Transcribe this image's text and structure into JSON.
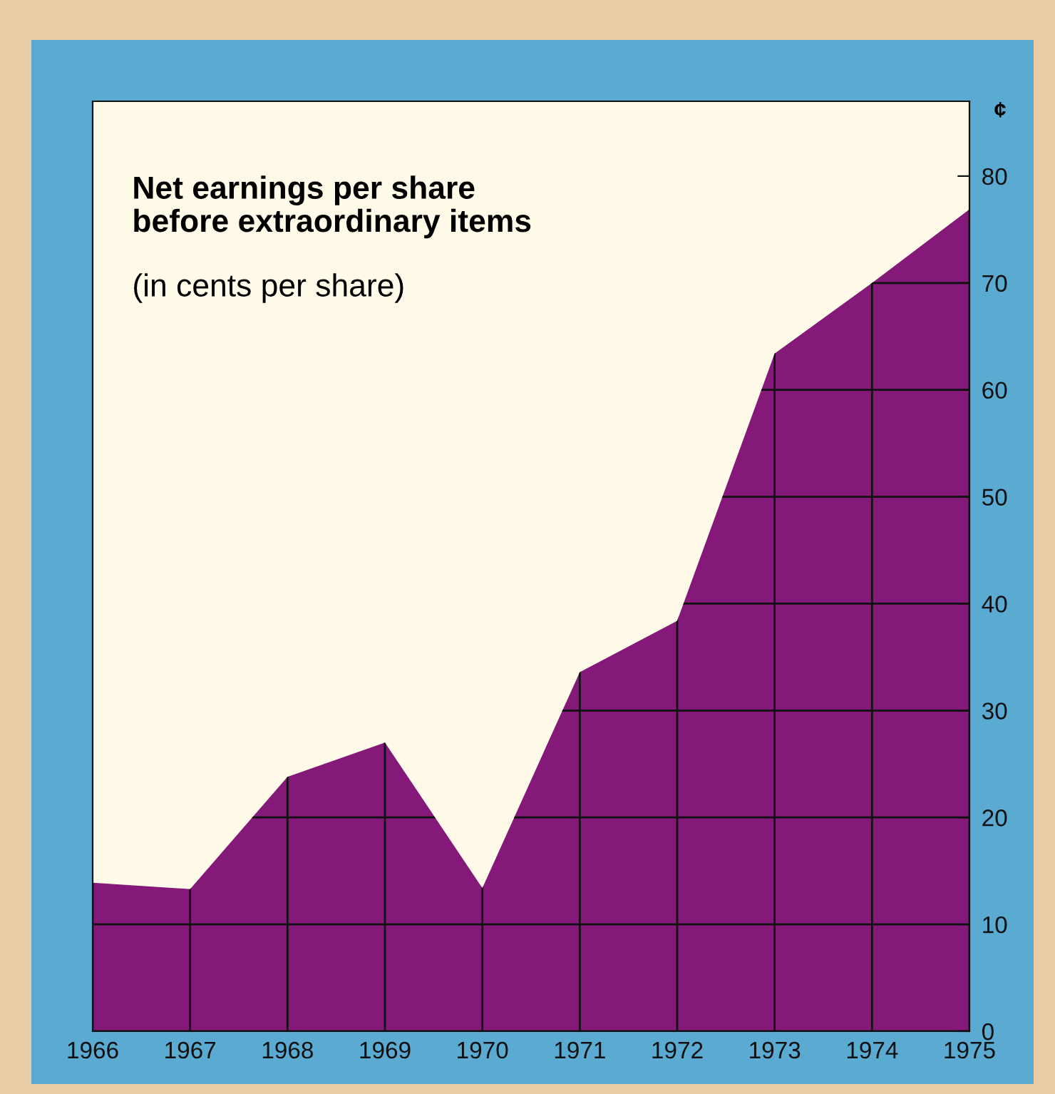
{
  "chart_data": {
    "type": "area",
    "title": "Net earnings per share\nbefore extraordinary items",
    "subtitle": "(in cents per share)",
    "ylabel": "¢",
    "x": [
      1966,
      1967,
      1968,
      1969,
      1970,
      1971,
      1972,
      1973,
      1974,
      1975
    ],
    "series": [
      {
        "color": "#84197a",
        "values": [
          13.9,
          13.3,
          23.8,
          27.0,
          13.4,
          33.6,
          38.4,
          63.4,
          70.0,
          76.9
        ]
      }
    ],
    "xlim": [
      1966,
      1975
    ],
    "xticks": [
      1966,
      1967,
      1968,
      1969,
      1970,
      1971,
      1972,
      1973,
      1974,
      1975
    ],
    "ylim": [
      0,
      87
    ],
    "yticks": [
      0,
      10,
      20,
      30,
      40,
      50,
      60,
      70,
      80
    ],
    "grid": true,
    "legend": false
  }
}
